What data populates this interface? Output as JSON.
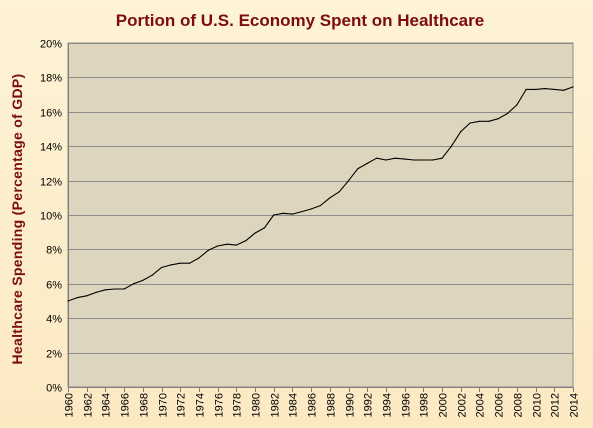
{
  "chart_data": {
    "type": "line",
    "title": "Portion of U.S. Economy Spent on Healthcare",
    "xlabel": "",
    "ylabel": "Healthcare Spending (Percentage of GDP)",
    "xlim": [
      1960,
      2014
    ],
    "ylim": [
      0,
      20
    ],
    "y_ticks": [
      "0%",
      "2%",
      "4%",
      "6%",
      "8%",
      "10%",
      "12%",
      "14%",
      "16%",
      "18%",
      "20%"
    ],
    "x_ticks": [
      "1960",
      "1962",
      "1964",
      "1966",
      "1968",
      "1970",
      "1972",
      "1974",
      "1976",
      "1978",
      "1980",
      "1982",
      "1984",
      "1986",
      "1988",
      "1990",
      "1992",
      "1994",
      "1996",
      "1998",
      "2000",
      "2002",
      "2004",
      "2006",
      "2008",
      "2010",
      "2012",
      "2014"
    ],
    "grid": true,
    "legend": false,
    "colors": {
      "background": "#fdf0cf",
      "plot_area": "#ddd5bd",
      "line": "#000000",
      "title": "#7a0c12",
      "gridline": "#8c8c8c"
    },
    "series": [
      {
        "x": [
          1960,
          1961,
          1962,
          1963,
          1964,
          1965,
          1966,
          1967,
          1968,
          1969,
          1970,
          1971,
          1972,
          1973,
          1974,
          1975,
          1976,
          1977,
          1978,
          1979,
          1980,
          1981,
          1982,
          1983,
          1984,
          1985,
          1986,
          1987,
          1988,
          1989,
          1990,
          1991,
          1992,
          1993,
          1994,
          1995,
          1996,
          1997,
          1998,
          1999,
          2000,
          2001,
          2002,
          2003,
          2004,
          2005,
          2006,
          2007,
          2008,
          2009,
          2010,
          2011,
          2012,
          2013,
          2014
        ],
        "values": [
          5.0,
          5.2,
          5.3,
          5.5,
          5.65,
          5.7,
          5.7,
          6.0,
          6.2,
          6.5,
          6.95,
          7.1,
          7.2,
          7.2,
          7.5,
          7.95,
          8.2,
          8.3,
          8.25,
          8.5,
          8.95,
          9.25,
          10.0,
          10.1,
          10.05,
          10.2,
          10.35,
          10.55,
          11.0,
          11.35,
          12.0,
          12.7,
          13.0,
          13.3,
          13.2,
          13.3,
          13.25,
          13.2,
          13.2,
          13.2,
          13.3,
          14.0,
          14.85,
          15.35,
          15.45,
          15.45,
          15.6,
          15.9,
          16.4,
          17.3,
          17.3,
          17.35,
          17.3,
          17.25,
          17.45
        ]
      }
    ]
  }
}
